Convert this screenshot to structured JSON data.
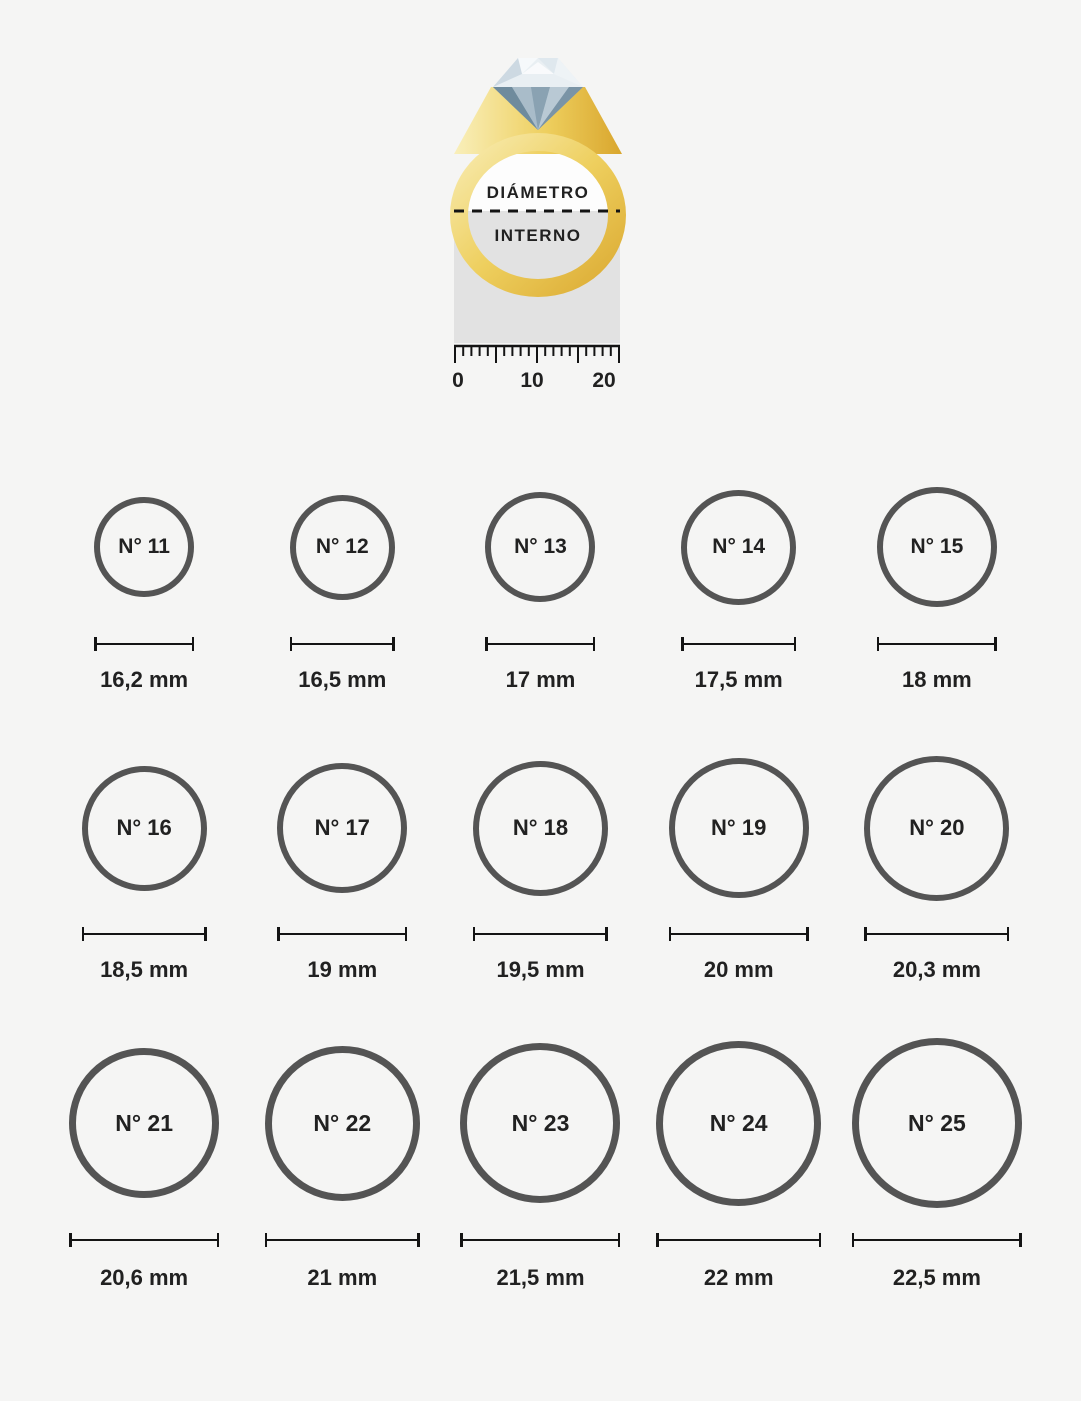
{
  "colors": {
    "background": "#f5f5f4",
    "circle_stroke": "#545454",
    "text": "#212121",
    "measure_line": "#141414",
    "rect_gray": "#e2e2e2",
    "hole_white": "#fdfdfd",
    "gold_light": "#f9efbb",
    "gold_mid": "#eecf5e",
    "gold_dark": "#d9a62e",
    "diamond_light": "#f4f8fa",
    "diamond_mid": "#c9d6de",
    "diamond_dark": "#7f98a8"
  },
  "ring_diagram": {
    "label_top": "DIÁMETRO",
    "label_bottom": "INTERNO",
    "ruler": {
      "labels": [
        "0",
        "10",
        "20"
      ],
      "unit_ticks": 21
    }
  },
  "rings": [
    {
      "size_label": "N° 11",
      "diameter_label": "16,2 mm",
      "mm": 16.2
    },
    {
      "size_label": "N° 12",
      "diameter_label": "16,5 mm",
      "mm": 16.5
    },
    {
      "size_label": "N° 13",
      "diameter_label": "17 mm",
      "mm": 17
    },
    {
      "size_label": "N° 14",
      "diameter_label": "17,5 mm",
      "mm": 17.5
    },
    {
      "size_label": "N° 15",
      "diameter_label": "18 mm",
      "mm": 18
    },
    {
      "size_label": "N° 16",
      "diameter_label": "18,5 mm",
      "mm": 18.5
    },
    {
      "size_label": "N° 17",
      "diameter_label": "19 mm",
      "mm": 19
    },
    {
      "size_label": "N° 18",
      "diameter_label": "19,5 mm",
      "mm": 19.5
    },
    {
      "size_label": "N° 19",
      "diameter_label": "20 mm",
      "mm": 20
    },
    {
      "size_label": "N° 20",
      "diameter_label": "20,3 mm",
      "mm": 20.3
    },
    {
      "size_label": "N° 21",
      "diameter_label": "20,6 mm",
      "mm": 20.6
    },
    {
      "size_label": "N° 22",
      "diameter_label": "21 mm",
      "mm": 21
    },
    {
      "size_label": "N° 23",
      "diameter_label": "21,5 mm",
      "mm": 21.5
    },
    {
      "size_label": "N° 24",
      "diameter_label": "22 mm",
      "mm": 22
    },
    {
      "size_label": "N° 25",
      "diameter_label": "22,5 mm",
      "mm": 22.5
    }
  ]
}
